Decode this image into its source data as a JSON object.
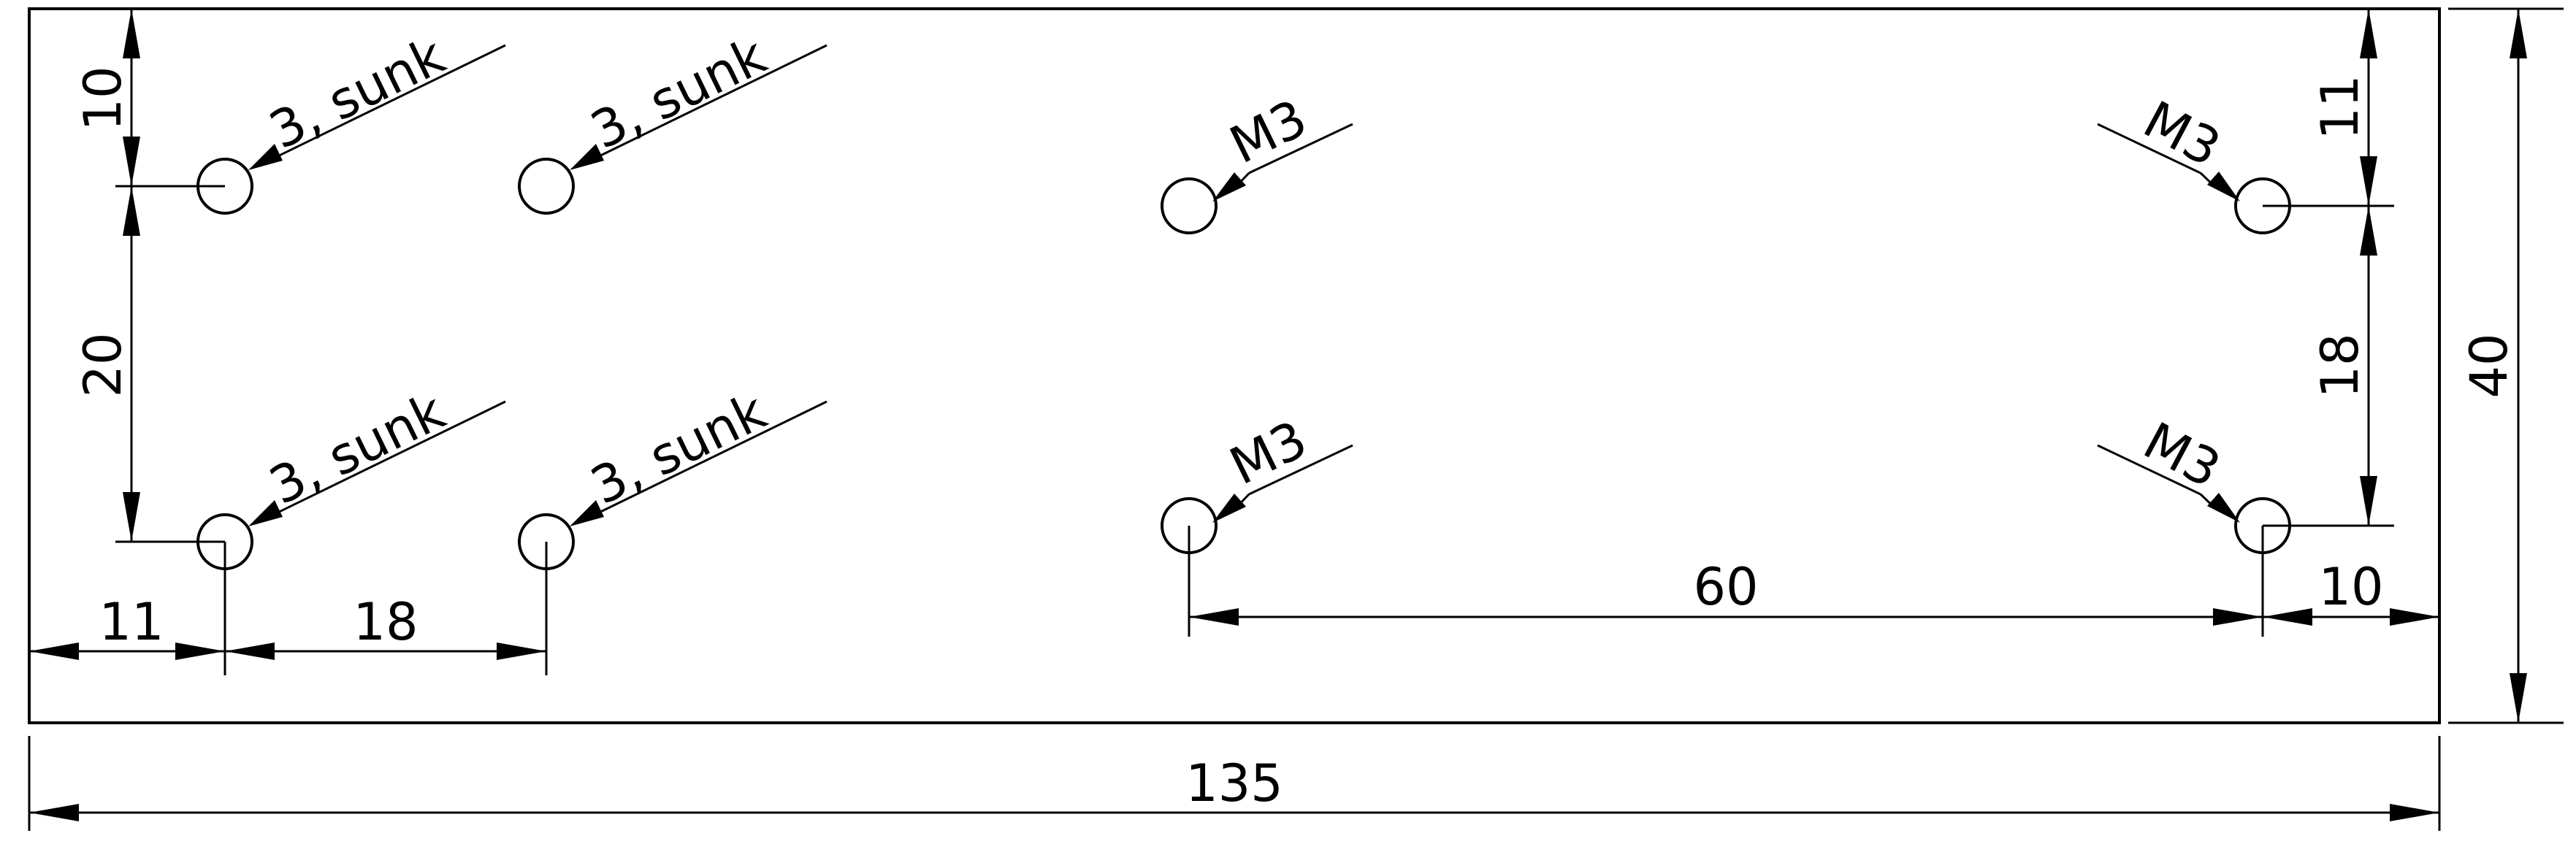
{
  "dimensions": {
    "overall_width": "135",
    "overall_height": "40",
    "left_margin": "11",
    "left_hole_spacing": "18",
    "top_margin_left": "10",
    "left_vertical_spacing": "20",
    "center_to_right_spacing": "60",
    "right_margin": "10",
    "top_margin_right": "11",
    "right_vertical_spacing": "18"
  },
  "callouts": {
    "countersunk": "3, sunk",
    "threaded": "M3"
  }
}
